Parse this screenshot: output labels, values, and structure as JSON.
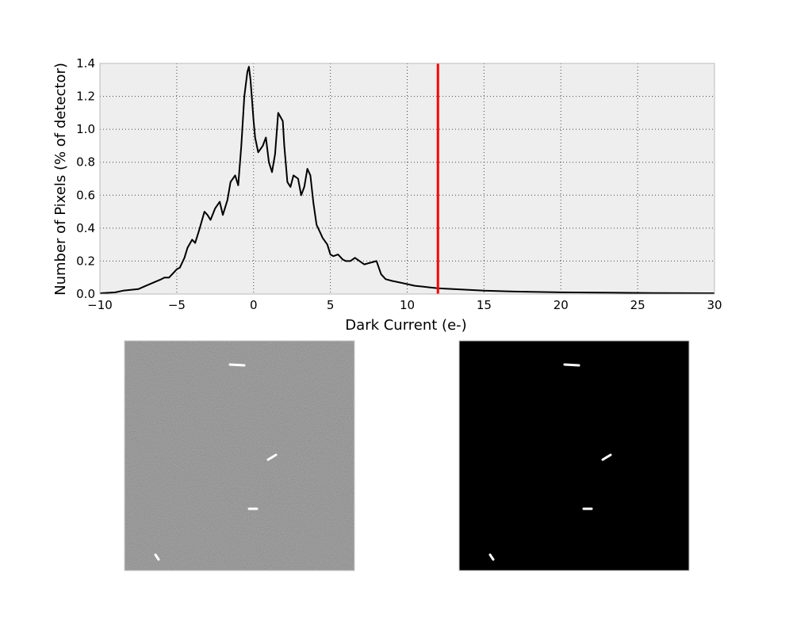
{
  "chart_data": [
    {
      "type": "line",
      "title": "",
      "xlabel": "Dark Current (e-)",
      "ylabel": "Number of Pixels (% of detector)",
      "xlim": [
        -10,
        30
      ],
      "ylim": [
        0.0,
        1.4
      ],
      "xticks": [
        "−10",
        "−5",
        "0",
        "5",
        "10",
        "15",
        "20",
        "25",
        "30"
      ],
      "yticks": [
        "0.0",
        "0.2",
        "0.4",
        "0.6",
        "0.8",
        "1.0",
        "1.2",
        "1.4"
      ],
      "grid": true,
      "background_color": "#eeeeee",
      "series": [
        {
          "color": "#000000",
          "x": [
            -10,
            -9,
            -8.5,
            -8,
            -7.5,
            -7,
            -6.5,
            -6,
            -5.8,
            -5.5,
            -5.3,
            -5,
            -4.8,
            -4.5,
            -4.3,
            -4,
            -3.8,
            -3.5,
            -3.2,
            -3,
            -2.8,
            -2.5,
            -2.2,
            -2,
            -1.7,
            -1.5,
            -1.2,
            -1,
            -0.8,
            -0.6,
            -0.4,
            -0.3,
            -0.2,
            0,
            0.1,
            0.3,
            0.6,
            0.8,
            1,
            1.2,
            1.4,
            1.6,
            1.9,
            2,
            2.2,
            2.4,
            2.6,
            2.9,
            3.1,
            3.3,
            3.5,
            3.7,
            3.9,
            4.1,
            4.3,
            4.5,
            4.8,
            5,
            5.2,
            5.5,
            5.8,
            6,
            6.3,
            6.6,
            6.9,
            7.2,
            7.6,
            8,
            8.3,
            8.6,
            9,
            9.5,
            10,
            10.5,
            11,
            11.5,
            12,
            13,
            14,
            15,
            17,
            20,
            23,
            26,
            30
          ],
          "values": [
            0.005,
            0.01,
            0.02,
            0.025,
            0.03,
            0.05,
            0.07,
            0.09,
            0.1,
            0.1,
            0.12,
            0.15,
            0.16,
            0.22,
            0.28,
            0.33,
            0.31,
            0.4,
            0.5,
            0.48,
            0.45,
            0.52,
            0.56,
            0.48,
            0.57,
            0.68,
            0.72,
            0.66,
            0.9,
            1.2,
            1.35,
            1.38,
            1.3,
            1.05,
            0.95,
            0.86,
            0.9,
            0.95,
            0.8,
            0.74,
            0.85,
            1.1,
            1.05,
            0.9,
            0.68,
            0.65,
            0.72,
            0.7,
            0.6,
            0.65,
            0.76,
            0.72,
            0.55,
            0.42,
            0.38,
            0.34,
            0.3,
            0.24,
            0.23,
            0.24,
            0.21,
            0.2,
            0.2,
            0.22,
            0.2,
            0.18,
            0.19,
            0.2,
            0.12,
            0.09,
            0.08,
            0.07,
            0.06,
            0.05,
            0.045,
            0.04,
            0.035,
            0.03,
            0.025,
            0.02,
            0.015,
            0.01,
            0.008,
            0.006,
            0.005
          ]
        }
      ],
      "annotations": [
        {
          "type": "vline",
          "x": 12,
          "color": "#ff0000"
        }
      ]
    }
  ],
  "images": [
    {
      "kind": "dark-frame-grayscale",
      "background": "#8a8a8a",
      "speck_color": "#ffffff"
    },
    {
      "kind": "thresholded-mask",
      "background": "#000000",
      "speck_color": "#ffffff"
    }
  ]
}
